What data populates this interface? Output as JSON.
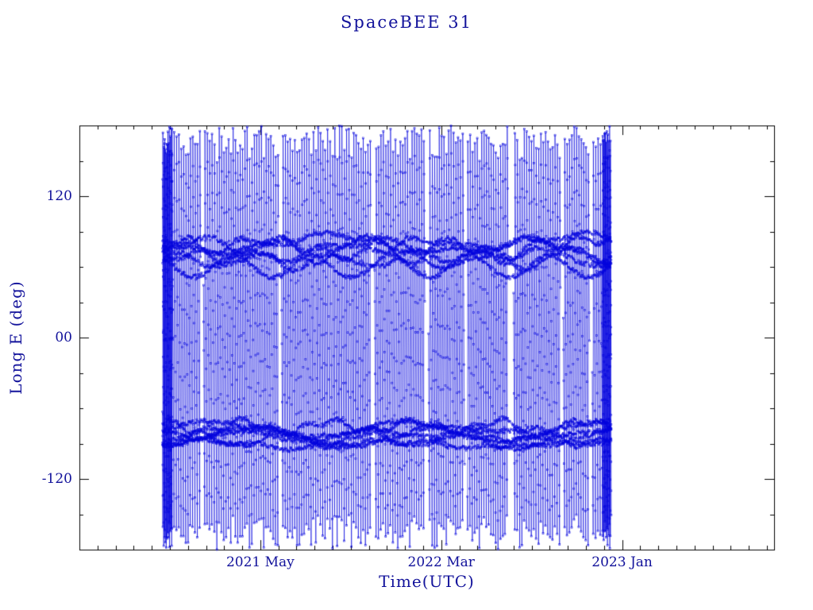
{
  "colors": {
    "text": "#12129b",
    "data": "#0000dd",
    "axis": "#000000",
    "background": "#ffffff"
  },
  "chart_data": {
    "type": "line",
    "title": "SpaceBEE 31",
    "xlabel": "Time(UTC)",
    "ylabel": "Long E (deg)",
    "legend": "none",
    "grid": false,
    "x_unit": "months-since-2020-07",
    "x_range": [
      0,
      38.4
    ],
    "y_range": [
      -180,
      180
    ],
    "x_minor_step": 1,
    "y_minor_step": 30,
    "x_ticks": [
      {
        "value": 10,
        "label": "2021 May"
      },
      {
        "value": 20,
        "label": "2022 Mar"
      },
      {
        "value": 30,
        "label": "2023 Jan"
      }
    ],
    "y_ticks": [
      {
        "value": 120,
        "label": "120"
      },
      {
        "value": 0,
        "label": "00"
      },
      {
        "value": -120,
        "label": "-120"
      }
    ],
    "data_time_span": {
      "start_month": 4.6,
      "end_month": 29.4
    },
    "marker": "open-square",
    "series": [
      {
        "model": "wrap",
        "name": "longitude-ground-track",
        "seed": 11,
        "t_start": 4.6,
        "t_end": 29.4,
        "dt": 0.01,
        "step_deg": 27.7,
        "jitter": 9,
        "lon_start": 160,
        "gaps": [
          [
            6.7,
            6.85
          ],
          [
            11.0,
            11.15
          ],
          [
            16.1,
            16.3
          ],
          [
            19.1,
            19.3
          ],
          [
            21.3,
            21.45
          ],
          [
            23.7,
            24.0
          ],
          [
            26.6,
            26.75
          ],
          [
            28.2,
            28.35
          ]
        ]
      },
      {
        "model": "wrap",
        "name": "dense-start-cluster",
        "seed": 23,
        "t_start": 4.6,
        "t_end": 5.15,
        "dt": 0.003,
        "step_deg": 23,
        "jitter": 7,
        "lon_start": -40,
        "gaps": []
      },
      {
        "model": "wrap",
        "name": "dense-end-cluster",
        "seed": 37,
        "t_start": 28.9,
        "t_end": 29.4,
        "dt": 0.003,
        "step_deg": 23,
        "jitter": 7,
        "lon_start": 80,
        "gaps": []
      },
      {
        "model": "band",
        "name": "north-longitude-band",
        "seed": 41,
        "center": 70,
        "traces": 6,
        "spread": 26,
        "amp": 8,
        "t_start": 4.6,
        "t_end": 29.4,
        "dt": 0.045,
        "noise": 4,
        "dropout": 0.06
      },
      {
        "model": "band",
        "name": "south-longitude-band",
        "seed": 53,
        "center": -85,
        "traces": 6,
        "spread": 22,
        "amp": 7,
        "t_start": 4.6,
        "t_end": 29.4,
        "dt": 0.045,
        "noise": 4,
        "dropout": 0.06
      }
    ]
  }
}
